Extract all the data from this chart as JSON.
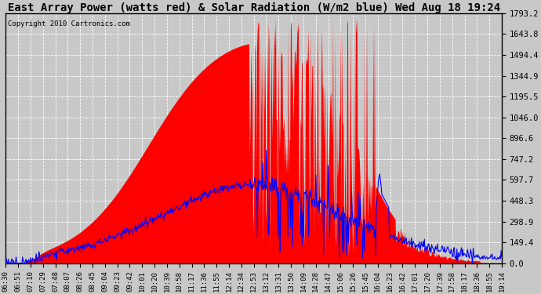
{
  "title": "East Array Power (watts red) & Solar Radiation (W/m2 blue) Wed Aug 18 19:24",
  "copyright": "Copyright 2010 Cartronics.com",
  "yticks": [
    0.0,
    149.4,
    298.9,
    448.3,
    597.7,
    747.2,
    896.6,
    1046.0,
    1195.5,
    1344.9,
    1494.4,
    1643.8,
    1793.2
  ],
  "ymax": 1793.2,
  "ymin": 0.0,
  "bg_color": "#c8c8c8",
  "plot_bg": "#c8c8c8",
  "red_color": "#ff0000",
  "blue_color": "#0000ff",
  "grid_color": "#ffffff",
  "xtick_labels": [
    "06:30",
    "06:51",
    "07:10",
    "07:29",
    "07:48",
    "08:07",
    "08:26",
    "08:45",
    "09:04",
    "09:23",
    "09:42",
    "10:01",
    "10:20",
    "10:39",
    "10:58",
    "11:17",
    "11:36",
    "11:55",
    "12:14",
    "12:34",
    "12:53",
    "13:12",
    "13:31",
    "13:50",
    "14:09",
    "14:28",
    "14:47",
    "15:06",
    "15:26",
    "15:45",
    "16:04",
    "16:23",
    "16:42",
    "17:01",
    "17:20",
    "17:39",
    "17:58",
    "18:17",
    "18:36",
    "18:55",
    "19:14"
  ],
  "title_fontsize": 10,
  "copyright_fontsize": 6.5,
  "tick_fontsize": 6.5,
  "ytick_fontsize": 7.5
}
